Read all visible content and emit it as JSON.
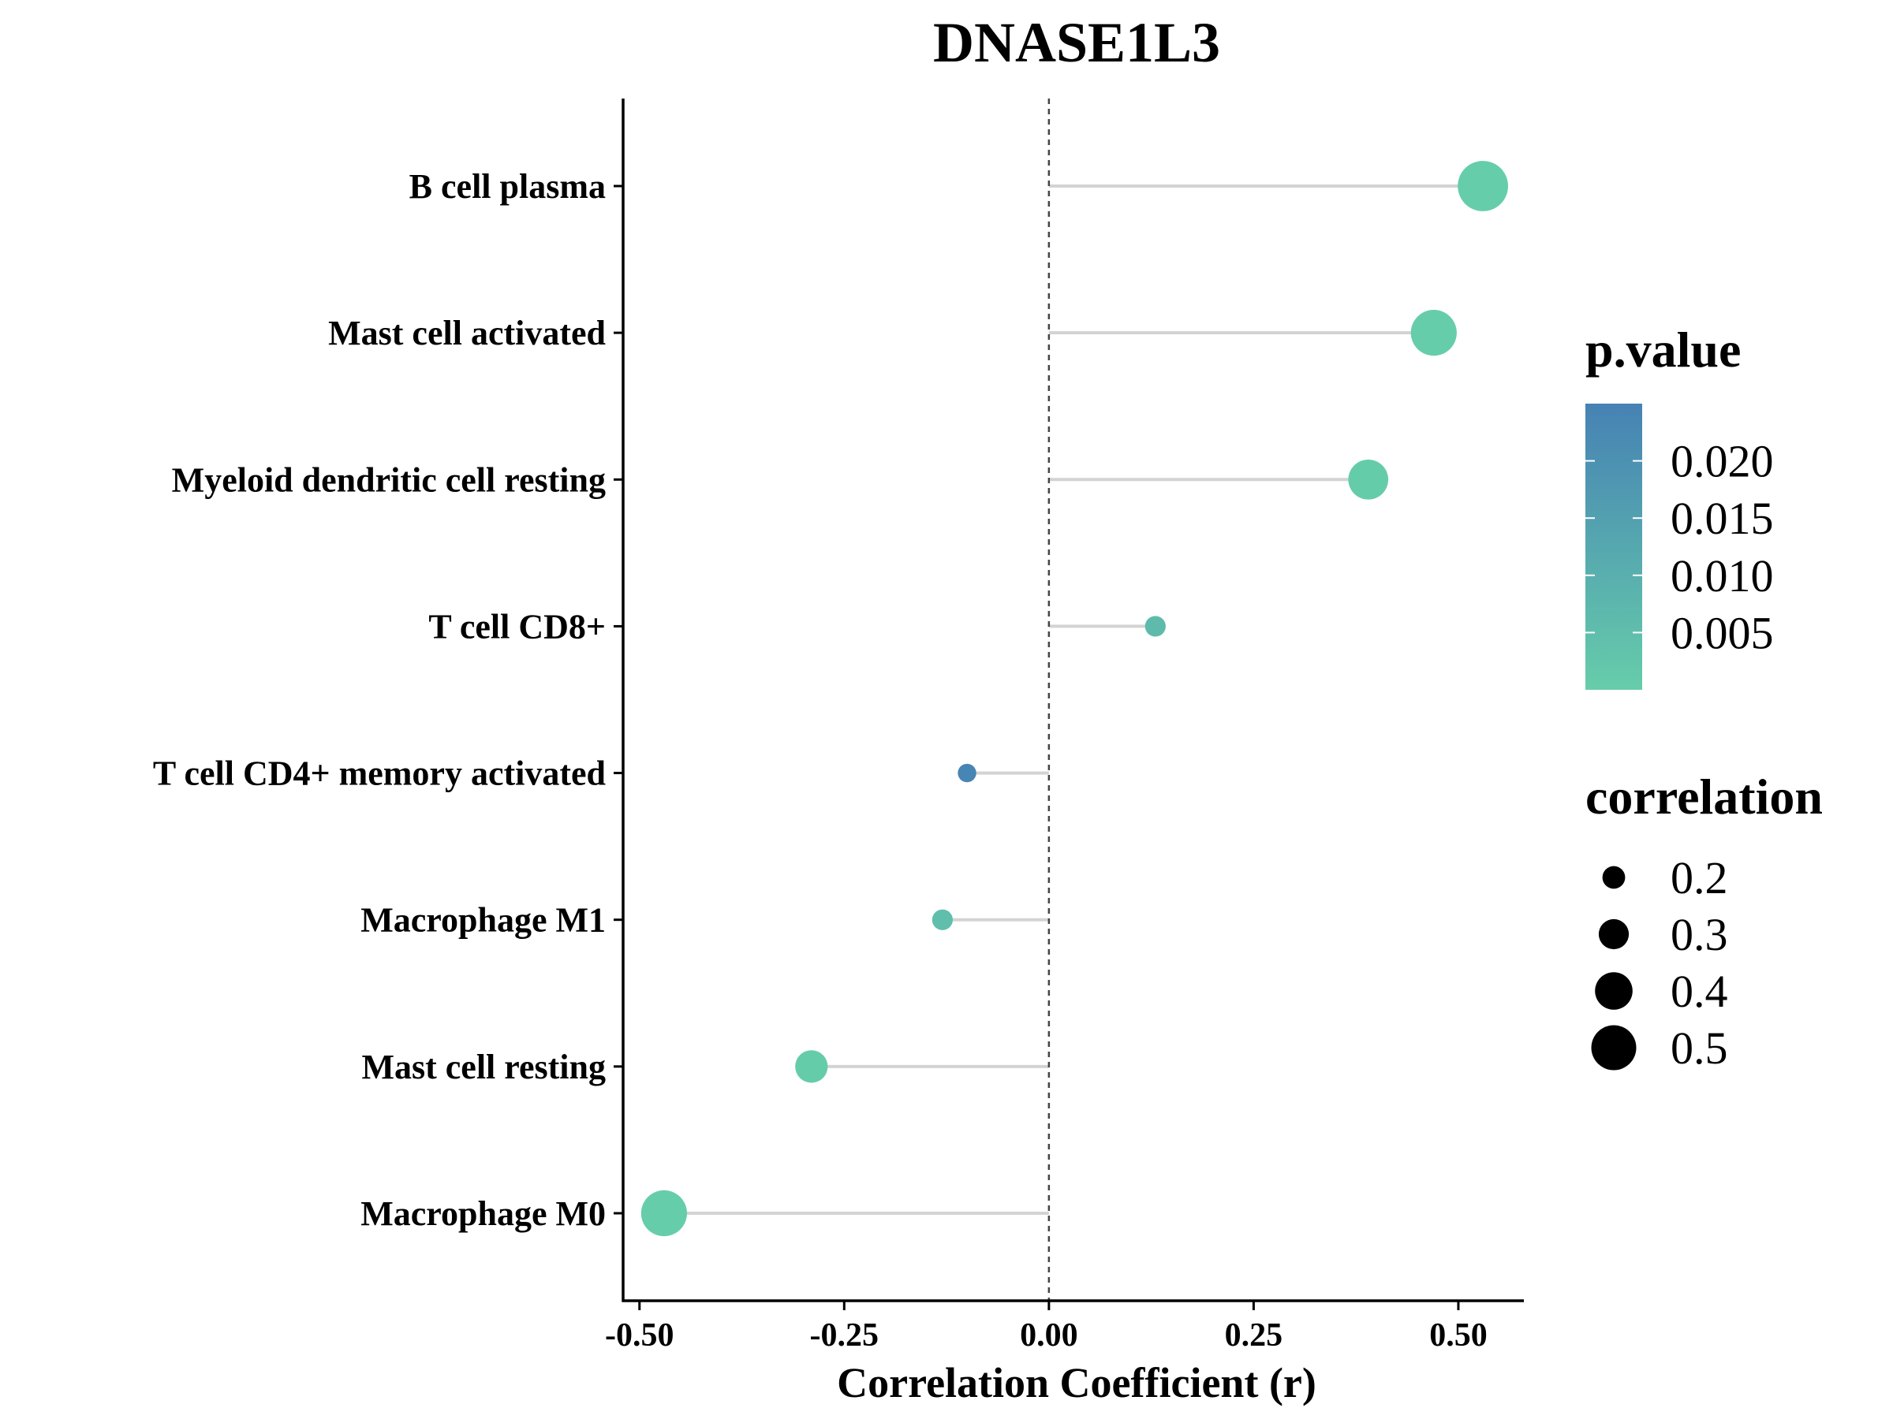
{
  "chart_data": {
    "type": "lollipop",
    "title": "DNASE1L3",
    "xlabel": "Correlation Coefficient (r)",
    "ylabel": "",
    "xlim": [
      -0.52,
      0.58
    ],
    "x_ticks": [
      -0.5,
      -0.25,
      0.0,
      0.25,
      0.5
    ],
    "x_tick_labels": [
      "-0.50",
      "-0.25",
      "0.00",
      "0.25",
      "0.50"
    ],
    "reference_line": {
      "x": 0,
      "style": "dashed"
    },
    "categories": [
      "B cell plasma",
      "Mast cell activated",
      "Myeloid dendritic cell resting",
      "T cell CD8+",
      "T cell CD4+ memory activated",
      "Macrophage M1",
      "Mast cell resting",
      "Macrophage M0"
    ],
    "points": [
      {
        "category": "B cell plasma",
        "r": 0.53,
        "p_value": 0.0
      },
      {
        "category": "Mast cell activated",
        "r": 0.47,
        "p_value": 0.0
      },
      {
        "category": "Myeloid dendritic cell resting",
        "r": 0.39,
        "p_value": 0.0005
      },
      {
        "category": "T cell CD8+",
        "r": 0.13,
        "p_value": 0.006
      },
      {
        "category": "T cell CD4+ memory activated",
        "r": -0.1,
        "p_value": 0.024
      },
      {
        "category": "Macrophage M1",
        "r": -0.13,
        "p_value": 0.005
      },
      {
        "category": "Mast cell resting",
        "r": -0.29,
        "p_value": 0.0005
      },
      {
        "category": "Macrophage M0",
        "r": -0.47,
        "p_value": 0.0
      }
    ],
    "legend_color": {
      "title": "p.value",
      "range": [
        0.0,
        0.025
      ],
      "ticks": [
        0.02,
        0.015,
        0.01,
        0.005
      ],
      "tick_labels": [
        "0.020",
        "0.015",
        "0.010",
        "0.005"
      ],
      "low_color": "#66CDAA",
      "high_color": "#4682B4"
    },
    "legend_size": {
      "title": "correlation",
      "values": [
        0.2,
        0.3,
        0.4,
        0.5
      ],
      "labels": [
        "0.2",
        "0.3",
        "0.4",
        "0.5"
      ]
    },
    "legend_position": "right",
    "grid": false,
    "colors": {
      "segment": "#d3d3d3",
      "axis": "#000000",
      "zero_line": "#444444"
    }
  }
}
